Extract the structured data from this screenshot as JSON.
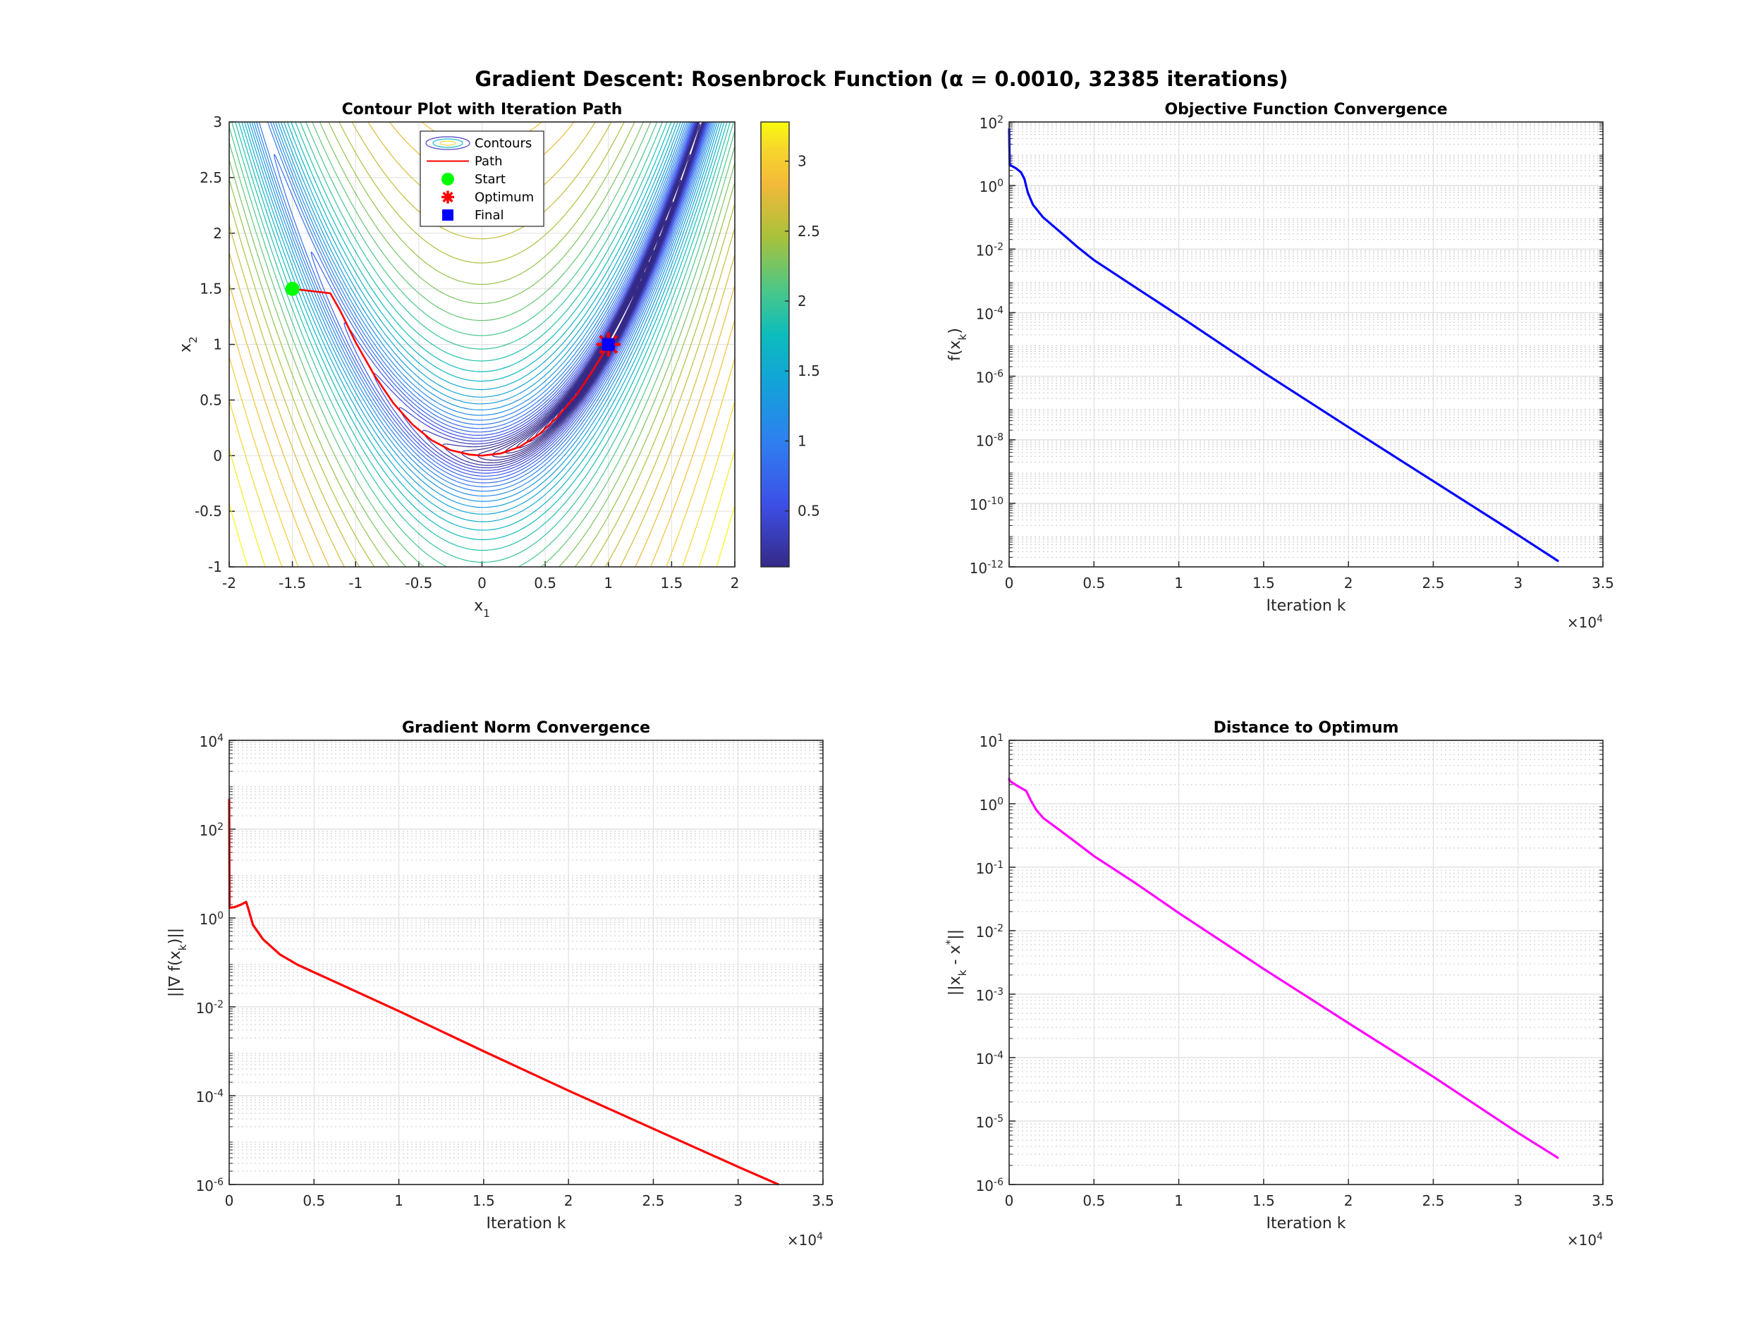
{
  "figure": {
    "title": "Gradient Descent: Rosenbrock Function (α = 0.0010, 32385 iterations)"
  },
  "chart_data": [
    {
      "type": "contour",
      "title": "Contour Plot with Iteration Path",
      "xlabel": "x_1",
      "ylabel": "x_2",
      "xlim": [
        -2,
        2
      ],
      "ylim": [
        -1,
        3
      ],
      "xticks": [
        -2,
        -1.5,
        -1,
        -0.5,
        0,
        0.5,
        1,
        1.5,
        2
      ],
      "xtick_labels": [
        "-2",
        "-1.5",
        "-1",
        "-0.5",
        "0",
        "0.5",
        "1",
        "1.5",
        "2"
      ],
      "yticks": [
        -1,
        -0.5,
        0,
        0.5,
        1,
        1.5,
        2,
        2.5,
        3
      ],
      "ytick_labels": [
        "-1",
        "-0.5",
        "0",
        "0.5",
        "1",
        "1.5",
        "2",
        "2.5",
        "3"
      ],
      "grid": true,
      "function": "Rosenbrock",
      "contour_value": "log10 f",
      "colorbar": {
        "colormap": "parula",
        "range": [
          0.1,
          3.28
        ],
        "ticks": [
          0.5,
          1,
          1.5,
          2,
          2.5,
          3
        ],
        "tick_labels": [
          "0.5",
          "1",
          "1.5",
          "2",
          "2.5",
          "3"
        ]
      },
      "legend": {
        "placement": "top-center",
        "entries": [
          {
            "label": "Contours",
            "marker": "contour"
          },
          {
            "label": "Path",
            "marker": "line",
            "color": "#ff0000"
          },
          {
            "label": "Start",
            "marker": "circle",
            "color": "#00ff00"
          },
          {
            "label": "Optimum",
            "marker": "asterisk",
            "color": "#ff0000"
          },
          {
            "label": "Final",
            "marker": "square",
            "color": "#0000ff"
          }
        ]
      },
      "path": {
        "color": "#ff0000",
        "x": [
          -1.5,
          -1.2,
          -1.12,
          -1.0,
          -0.85,
          -0.7,
          -0.55,
          -0.4,
          -0.25,
          -0.1,
          0.0,
          0.15,
          0.3,
          0.45,
          0.6,
          0.75,
          0.88,
          0.97,
          1.0
        ],
        "y": [
          1.5,
          1.46,
          1.3,
          1.02,
          0.72,
          0.47,
          0.28,
          0.14,
          0.05,
          0.01,
          0.0,
          0.02,
          0.08,
          0.19,
          0.35,
          0.55,
          0.77,
          0.94,
          1.0
        ]
      },
      "start": {
        "x": -1.5,
        "y": 1.5,
        "color": "#00ff00"
      },
      "optimum": {
        "x": 1,
        "y": 1,
        "color": "#ff0000"
      },
      "final": {
        "x": 1,
        "y": 1,
        "color": "#0000ff"
      }
    },
    {
      "type": "line",
      "title": "Objective Function Convergence",
      "xlabel": "Iteration k",
      "ylabel": "f(x_k)",
      "yscale": "log",
      "xlim": [
        0,
        35000
      ],
      "ylim": [
        1e-12,
        100
      ],
      "xticks": [
        0,
        5000,
        10000,
        15000,
        20000,
        25000,
        30000,
        35000
      ],
      "xtick_labels": [
        "0",
        "0.5",
        "1",
        "1.5",
        "2",
        "2.5",
        "3",
        "3.5"
      ],
      "x_multiplier": "×10^{4}",
      "yticks": [
        1e-12,
        1e-10,
        1e-08,
        1e-06,
        0.0001,
        0.01,
        1,
        100
      ],
      "ytick_labels": [
        "10^{-12}",
        "10^{-10}",
        "10^{-8}",
        "10^{-6}",
        "10^{-4}",
        "10^{-2}",
        "10^{0}",
        "10^{2}"
      ],
      "grid": true,
      "series": [
        {
          "color": "#0000ff",
          "x": [
            0,
            30,
            400,
            700,
            900,
            1100,
            1400,
            2000,
            3000,
            4000,
            5000,
            7500,
            10000,
            15000,
            20000,
            25000,
            30000,
            32385
          ],
          "y": [
            62.5,
            4.5,
            3.5,
            2.6,
            1.6,
            0.6,
            0.25,
            0.1,
            0.035,
            0.012,
            0.0045,
            0.0006,
            8e-05,
            1.3e-06,
            2.5e-08,
            5e-10,
            1e-11,
            1.5e-12
          ]
        }
      ]
    },
    {
      "type": "line",
      "title": "Gradient Norm Convergence",
      "xlabel": "Iteration k",
      "ylabel": "||∇ f(x_k)||",
      "yscale": "log",
      "xlim": [
        0,
        35000
      ],
      "ylim": [
        1e-06,
        10000
      ],
      "xticks": [
        0,
        5000,
        10000,
        15000,
        20000,
        25000,
        30000,
        35000
      ],
      "xtick_labels": [
        "0",
        "0.5",
        "1",
        "1.5",
        "2",
        "2.5",
        "3",
        "3.5"
      ],
      "x_multiplier": "×10^{4}",
      "yticks": [
        1e-06,
        0.0001,
        0.01,
        1,
        100,
        10000
      ],
      "ytick_labels": [
        "10^{-6}",
        "10^{-4}",
        "10^{-2}",
        "10^{0}",
        "10^{2}",
        "10^{4}"
      ],
      "grid": true,
      "series": [
        {
          "color": "#ff0000",
          "x": [
            0,
            20,
            300,
            700,
            1000,
            1150,
            1400,
            2000,
            3000,
            4000,
            5000,
            7500,
            10000,
            15000,
            20000,
            25000,
            30000,
            32385
          ],
          "y": [
            480,
            1.7,
            1.75,
            2.0,
            2.3,
            1.5,
            0.7,
            0.33,
            0.15,
            0.09,
            0.06,
            0.022,
            0.008,
            0.001,
            0.00013,
            1.8e-05,
            2.5e-06,
            1e-06
          ]
        }
      ]
    },
    {
      "type": "line",
      "title": "Distance to Optimum",
      "xlabel": "Iteration k",
      "ylabel": "||x_k - x^*||",
      "yscale": "log",
      "xlim": [
        0,
        35000
      ],
      "ylim": [
        1e-06,
        10
      ],
      "xticks": [
        0,
        5000,
        10000,
        15000,
        20000,
        25000,
        30000,
        35000
      ],
      "xtick_labels": [
        "0",
        "0.5",
        "1",
        "1.5",
        "2",
        "2.5",
        "3",
        "3.5"
      ],
      "x_multiplier": "×10^{4}",
      "yticks": [
        1e-06,
        1e-05,
        0.0001,
        0.001,
        0.01,
        0.1,
        1,
        10
      ],
      "ytick_labels": [
        "10^{-6}",
        "10^{-5}",
        "10^{-4}",
        "10^{-3}",
        "10^{-2}",
        "10^{-1}",
        "10^{0}",
        "10^{1}"
      ],
      "grid": true,
      "series": [
        {
          "color": "#ff00ff",
          "x": [
            0,
            20,
            500,
            1000,
            1300,
            1600,
            2000,
            3000,
            4000,
            5000,
            7500,
            10000,
            15000,
            20000,
            25000,
            30000,
            32385
          ],
          "y": [
            2.55,
            2.3,
            1.9,
            1.6,
            1.1,
            0.8,
            0.6,
            0.38,
            0.24,
            0.15,
            0.055,
            0.019,
            0.0025,
            0.00035,
            5e-05,
            6.5e-06,
            2.6e-06
          ]
        }
      ]
    }
  ]
}
